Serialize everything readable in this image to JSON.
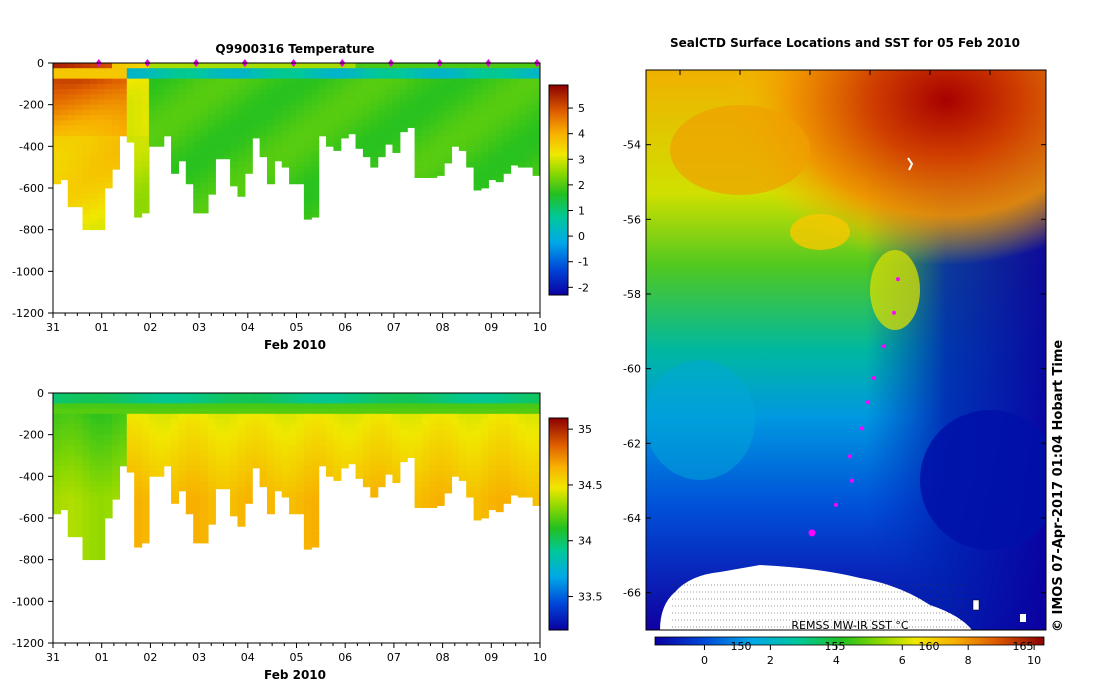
{
  "chart_data": [
    {
      "type": "heatmap",
      "title": "Q9900316  Temperature",
      "xlabel": "Feb 2010",
      "ylabel": "",
      "x_ticks": [
        "31",
        "01",
        "02",
        "03",
        "04",
        "05",
        "06",
        "07",
        "08",
        "09",
        "10"
      ],
      "y_ticks": [
        0,
        -200,
        -400,
        -600,
        -800,
        -1000,
        -1200
      ],
      "ylim": [
        -1200,
        0
      ],
      "colorbar": {
        "ticks": [
          5,
          4,
          3,
          2,
          1,
          0,
          -1,
          -2
        ],
        "range": [
          -2.3,
          5.9
        ]
      },
      "profile_times": [
        0.05,
        0.2,
        0.35,
        0.5,
        0.65,
        0.8,
        0.95,
        1.1,
        1.25,
        1.4,
        1.55,
        1.7,
        1.85,
        2.0,
        2.15,
        2.3,
        2.45,
        2.6,
        2.75,
        2.9,
        3.05,
        3.2,
        3.35,
        3.5,
        3.65,
        3.8,
        3.95,
        4.1,
        4.25,
        4.4,
        4.55,
        4.7,
        4.85,
        5.0,
        5.15,
        5.3,
        5.45,
        5.6,
        5.75,
        5.9,
        6.05,
        6.2,
        6.35,
        6.5,
        6.65,
        6.8,
        6.95,
        7.1,
        7.25,
        7.4,
        7.55,
        7.7,
        7.85,
        8.0,
        8.15,
        8.3,
        8.45,
        8.6,
        8.75,
        8.9,
        9.05,
        9.2,
        9.35,
        9.5,
        9.65,
        9.8
      ],
      "profile_depths": [
        580,
        560,
        690,
        690,
        800,
        800,
        800,
        600,
        510,
        350,
        380,
        740,
        720,
        400,
        400,
        350,
        530,
        470,
        580,
        720,
        720,
        630,
        460,
        460,
        590,
        640,
        530,
        360,
        450,
        580,
        470,
        500,
        580,
        580,
        750,
        740,
        350,
        400,
        420,
        360,
        340,
        410,
        450,
        500,
        450,
        390,
        430,
        330,
        310,
        550,
        550,
        550,
        540,
        480,
        400,
        420,
        500,
        610,
        600,
        560,
        570,
        530,
        490,
        500,
        500,
        540
      ],
      "surface_markers": [
        0.94,
        1.94,
        2.94,
        3.94,
        4.94,
        5.94,
        6.94,
        7.94,
        8.94,
        9.94
      ]
    },
    {
      "type": "heatmap",
      "title": "",
      "xlabel": "Feb 2010",
      "ylabel": "",
      "x_ticks": [
        "31",
        "01",
        "02",
        "03",
        "04",
        "05",
        "06",
        "07",
        "08",
        "09",
        "10"
      ],
      "y_ticks": [
        0,
        -200,
        -400,
        -600,
        -800,
        -1000,
        -1200
      ],
      "ylim": [
        -1200,
        0
      ],
      "colorbar": {
        "ticks": [
          35,
          34.5,
          34,
          33.5
        ],
        "range": [
          33.2,
          35.1
        ]
      }
    },
    {
      "type": "heatmap",
      "title": "SealCTD Surface Locations and SST for 05 Feb 2010",
      "xlabel": "",
      "ylabel": "",
      "y_ticks": [
        -54,
        -56,
        -58,
        -60,
        -62,
        -64,
        -66
      ],
      "ylim": [
        -67,
        -52
      ],
      "colorbar": {
        "ticks": [
          0,
          2,
          4,
          6,
          8,
          10
        ],
        "kelvin_ticks": [
          150,
          155,
          160,
          165
        ],
        "range": [
          -1.5,
          10.3
        ]
      },
      "sst_label": "REMSS MW-IR SST °C",
      "track_points": [
        {
          "lat": -57.6,
          "x": 0.26
        },
        {
          "lat": -58.5,
          "x": 0.24
        },
        {
          "lat": -59.4,
          "x": 0.19
        },
        {
          "lat": -60.25,
          "x": 0.14
        },
        {
          "lat": -60.9,
          "x": 0.11
        },
        {
          "lat": -61.6,
          "x": 0.08
        },
        {
          "lat": -62.35,
          "x": 0.02
        },
        {
          "lat": -63.0,
          "x": 0.03
        },
        {
          "lat": -63.65,
          "x": -0.05
        },
        {
          "lat": -64.4,
          "x": -0.17
        }
      ]
    }
  ],
  "credit": "© IMOS 07-Apr-2017 01:04 Hobart Time"
}
